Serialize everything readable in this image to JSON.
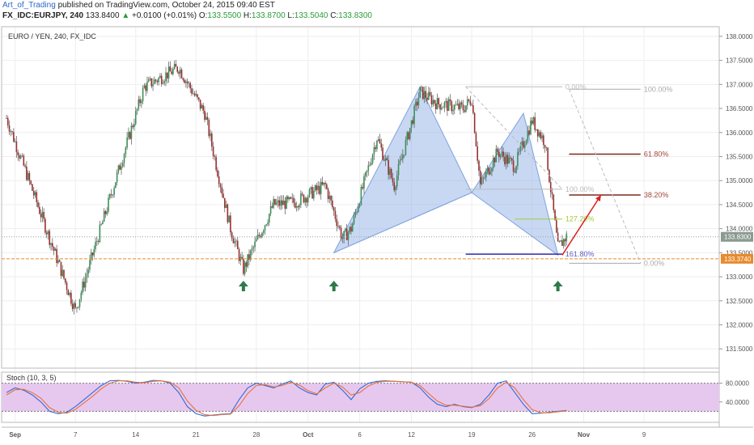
{
  "header": {
    "author": "Art_of_Trading",
    "published": "published on TradingView.com, October 24, 2015 09:40 EST",
    "symbol": "FX_IDC:EURJPY, 240",
    "last": "133.8400",
    "arrow": "▲",
    "change": "+0.0100 (+0.01%)",
    "o_label": "O:",
    "o_value": "133.5500",
    "h_label": "H:",
    "h_value": "133.8700",
    "l_label": "L:",
    "l_value": "133.5040",
    "c_label": "C:",
    "c_value": "133.8300"
  },
  "chart_data": [
    {
      "type": "candlestick",
      "title": "EURO / YEN, 240, FX_IDC",
      "ylim": [
        131.1,
        138.2
      ],
      "y_ticks": [
        "138.0000",
        "137.5000",
        "137.0000",
        "136.5000",
        "136.0000",
        "135.5000",
        "135.0000",
        "134.5000",
        "134.0000",
        "133.5000",
        "133.0000",
        "132.5000",
        "132.0000",
        "131.5000"
      ],
      "x_ticks": [
        "Sep",
        "7",
        "14",
        "21",
        "28",
        "Oct",
        "6",
        "12",
        "19",
        "26",
        "Nov",
        "9"
      ],
      "last_price": "133.8300",
      "support_price": "133.3740",
      "swing_points": [
        {
          "day": 0,
          "price": 136.3
        },
        {
          "day": 8,
          "price": 132.3
        },
        {
          "day": 16,
          "price": 136.95
        },
        {
          "day": 20,
          "price": 137.35
        },
        {
          "day": 23,
          "price": 136.4
        },
        {
          "day": 26,
          "price": 134.0
        },
        {
          "day": 27.5,
          "price": 133.15
        },
        {
          "day": 31,
          "price": 134.5
        },
        {
          "day": 33.5,
          "price": 134.55
        },
        {
          "day": 37,
          "price": 134.9
        },
        {
          "day": 39,
          "price": 133.8
        },
        {
          "day": 40,
          "price": 134.0
        },
        {
          "day": 43,
          "price": 135.9
        },
        {
          "day": 45,
          "price": 134.9
        },
        {
          "day": 48,
          "price": 136.85
        },
        {
          "day": 50,
          "price": 136.6
        },
        {
          "day": 53,
          "price": 136.5
        },
        {
          "day": 54,
          "price": 136.7
        },
        {
          "day": 55,
          "price": 134.9
        },
        {
          "day": 57,
          "price": 135.6
        },
        {
          "day": 59,
          "price": 135.3
        },
        {
          "day": 61,
          "price": 136.25
        },
        {
          "day": 62.5,
          "price": 135.8
        },
        {
          "day": 64,
          "price": 133.6
        },
        {
          "day": 65,
          "price": 133.84
        }
      ],
      "harmonic_pattern": [
        {
          "day": 38,
          "price": 133.5
        },
        {
          "day": 48,
          "price": 136.95
        },
        {
          "day": 54,
          "price": 134.75
        },
        {
          "day": 60,
          "price": 136.4
        },
        {
          "day": 64,
          "price": 133.45
        }
      ],
      "fib_left": [
        {
          "label": "0.00%",
          "price": 136.95
        },
        {
          "label": "100.00%",
          "price": 134.82
        },
        {
          "label": "127.20%",
          "price": 134.2
        },
        {
          "label": "161.80%",
          "price": 133.47
        }
      ],
      "fib_right": [
        {
          "label": "100.00%",
          "price": 136.9
        },
        {
          "label": "61.80%",
          "price": 135.55
        },
        {
          "label": "38.20%",
          "price": 134.7
        },
        {
          "label": "0.00%",
          "price": 133.28
        }
      ],
      "signal_arrows_day": [
        27.5,
        38,
        64
      ],
      "projection": [
        {
          "day": 64.5,
          "price": 133.45
        },
        {
          "day": 69,
          "price": 134.7
        }
      ]
    },
    {
      "type": "line",
      "title": "Stoch (10, 3, 5)",
      "ylim": [
        0,
        100
      ],
      "y_ticks": [
        "80.0000",
        "40.0000"
      ],
      "band": [
        20,
        80
      ],
      "series": [
        {
          "name": "",
          "color": "#2f6bd6",
          "values": [
            60,
            70,
            65,
            55,
            40,
            20,
            15,
            18,
            30,
            45,
            60,
            75,
            85,
            86,
            84,
            80,
            82,
            86,
            85,
            80,
            60,
            30,
            15,
            10,
            12,
            14,
            15,
            45,
            70,
            80,
            75,
            70,
            78,
            85,
            70,
            60,
            55,
            78,
            82,
            65,
            45,
            68,
            80,
            84,
            85,
            84,
            83,
            82,
            70,
            50,
            35,
            30,
            35,
            30,
            28,
            35,
            55,
            80,
            85,
            60,
            35,
            15,
            16,
            18,
            20,
            22
          ]
        },
        {
          "name": "",
          "color": "#e8713a",
          "values": [
            55,
            66,
            67,
            60,
            48,
            28,
            18,
            16,
            24,
            38,
            52,
            68,
            80,
            85,
            85,
            82,
            81,
            84,
            85,
            82,
            70,
            42,
            22,
            13,
            11,
            13,
            14,
            32,
            58,
            75,
            77,
            72,
            75,
            82,
            76,
            64,
            57,
            70,
            80,
            72,
            55,
            60,
            74,
            82,
            84,
            84,
            83,
            82,
            75,
            58,
            42,
            33,
            33,
            31,
            29,
            32,
            47,
            70,
            82,
            70,
            45,
            24,
            17,
            17,
            19,
            21
          ]
        }
      ]
    }
  ]
}
